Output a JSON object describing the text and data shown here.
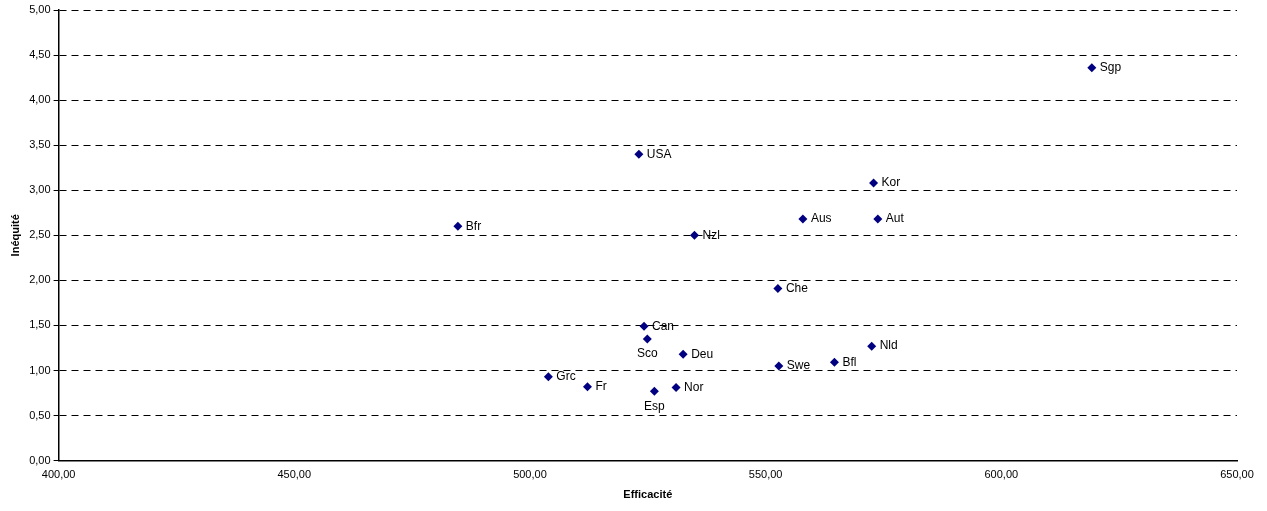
{
  "chart_data": {
    "type": "scatter",
    "xlabel": "Efficacité",
    "ylabel": "Inéquité",
    "x": [
      619.2,
      523.1,
      572.9,
      557.9,
      573.8,
      484.7,
      534.9,
      552.6,
      524.2,
      524.9,
      532.5,
      572.5,
      552.8,
      564.6,
      503.9,
      512.2,
      531.0,
      526.4
    ],
    "series": [
      {
        "color": "#000080",
        "values": [
          4.36,
          3.4,
          3.08,
          2.68,
          2.68,
          2.6,
          2.5,
          1.91,
          1.49,
          1.35,
          1.18,
          1.27,
          1.05,
          1.09,
          0.93,
          0.82,
          0.81,
          0.77
        ]
      }
    ],
    "annotations": [
      {
        "text": "Sgp",
        "x": 619.2,
        "y": 4.36
      },
      {
        "text": "USA",
        "x": 523.1,
        "y": 3.4
      },
      {
        "text": "Kor",
        "x": 572.9,
        "y": 3.08
      },
      {
        "text": "Aus",
        "x": 557.9,
        "y": 2.68
      },
      {
        "text": "Aut",
        "x": 573.8,
        "y": 2.68
      },
      {
        "text": "Bfr",
        "x": 484.7,
        "y": 2.6
      },
      {
        "text": "Nzl",
        "x": 534.9,
        "y": 2.5
      },
      {
        "text": "Che",
        "x": 552.6,
        "y": 1.91
      },
      {
        "text": "Can",
        "x": 524.2,
        "y": 1.49
      },
      {
        "text": "Sco",
        "x": 524.9,
        "y": 1.35
      },
      {
        "text": "Deu",
        "x": 532.5,
        "y": 1.18
      },
      {
        "text": "Nld",
        "x": 572.5,
        "y": 1.27
      },
      {
        "text": "Swe",
        "x": 552.8,
        "y": 1.05
      },
      {
        "text": "Bfl",
        "x": 564.6,
        "y": 1.09
      },
      {
        "text": "Grc",
        "x": 503.9,
        "y": 0.93
      },
      {
        "text": "Fr",
        "x": 512.2,
        "y": 0.82
      },
      {
        "text": "Nor",
        "x": 531.0,
        "y": 0.81
      },
      {
        "text": "Esp",
        "x": 526.4,
        "y": 0.77
      }
    ],
    "xlim": [
      400,
      650
    ],
    "xticks": [
      {
        "value": 400,
        "label": "400,00"
      },
      {
        "value": 450,
        "label": "450,00"
      },
      {
        "value": 500,
        "label": "500,00"
      },
      {
        "value": 550,
        "label": "550,00"
      },
      {
        "value": 600,
        "label": "600,00"
      },
      {
        "value": 650,
        "label": "650,00"
      }
    ],
    "ylim": [
      0,
      5
    ],
    "yticks": [
      {
        "value": 0,
        "label": "0,00"
      },
      {
        "value": 0.5,
        "label": "0,50"
      },
      {
        "value": 1,
        "label": "1,00"
      },
      {
        "value": 1.5,
        "label": "1,50"
      },
      {
        "value": 2,
        "label": "2,00"
      },
      {
        "value": 2.5,
        "label": "2,50"
      },
      {
        "value": 3,
        "label": "3,00"
      },
      {
        "value": 3.5,
        "label": "3,50"
      },
      {
        "value": 4,
        "label": "4,00"
      },
      {
        "value": 4.5,
        "label": "4,50"
      },
      {
        "value": 5,
        "label": "5,00"
      }
    ],
    "grid": "y",
    "marker": "diamond",
    "legend": false
  }
}
